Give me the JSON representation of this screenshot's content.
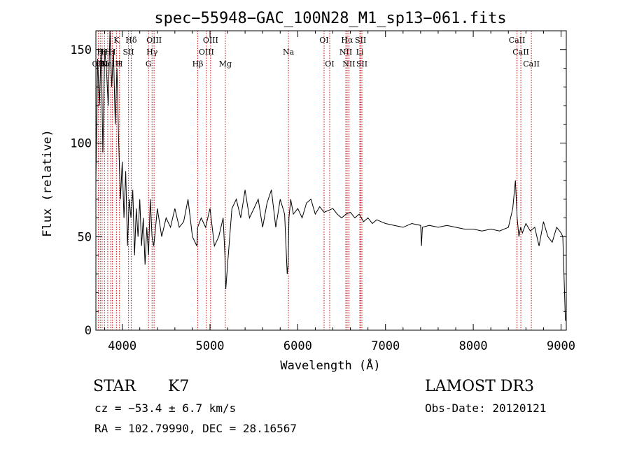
{
  "chart_data": {
    "type": "line",
    "title": "spec−55948−GAC_100N28_M1_sp13−061.fits",
    "xlabel": "Wavelength (Å)",
    "ylabel": "Flux (relative)",
    "xlim": [
      3700,
      9060
    ],
    "ylim": [
      0,
      160
    ],
    "xticks": [
      4000,
      5000,
      6000,
      7000,
      8000,
      9000
    ],
    "yticks": [
      0,
      50,
      100,
      150
    ],
    "grid": false,
    "series": [
      {
        "color": "#000000",
        "x": [
          3700,
          3720,
          3740,
          3760,
          3780,
          3800,
          3820,
          3840,
          3860,
          3880,
          3900,
          3920,
          3940,
          3960,
          3980,
          4000,
          4020,
          4040,
          4060,
          4080,
          4100,
          4120,
          4140,
          4160,
          4180,
          4200,
          4220,
          4240,
          4260,
          4280,
          4300,
          4320,
          4340,
          4360,
          4380,
          4400,
          4450,
          4500,
          4550,
          4600,
          4650,
          4700,
          4750,
          4800,
          4850,
          4860,
          4900,
          4950,
          5000,
          5050,
          5100,
          5150,
          5170,
          5180,
          5200,
          5250,
          5300,
          5350,
          5400,
          5450,
          5500,
          5550,
          5600,
          5650,
          5700,
          5750,
          5800,
          5850,
          5880,
          5890,
          5900,
          5920,
          5950,
          6000,
          6050,
          6100,
          6150,
          6200,
          6250,
          6300,
          6350,
          6400,
          6450,
          6500,
          6550,
          6600,
          6650,
          6700,
          6750,
          6800,
          6850,
          6900,
          6950,
          7000,
          7100,
          7200,
          7300,
          7400,
          7410,
          7420,
          7500,
          7600,
          7700,
          7800,
          7900,
          8000,
          8100,
          8200,
          8300,
          8400,
          8450,
          8480,
          8500,
          8520,
          8540,
          8560,
          8600,
          8650,
          8700,
          8750,
          8800,
          8850,
          8900,
          8950,
          9000,
          9020,
          9040,
          9050
        ],
        "values": [
          80,
          145,
          120,
          150,
          95,
          150,
          140,
          120,
          160,
          130,
          150,
          110,
          140,
          100,
          70,
          90,
          60,
          85,
          45,
          70,
          60,
          75,
          40,
          65,
          50,
          70,
          45,
          60,
          35,
          55,
          40,
          70,
          50,
          45,
          55,
          65,
          50,
          60,
          55,
          65,
          55,
          58,
          70,
          50,
          45,
          55,
          60,
          55,
          65,
          45,
          50,
          60,
          40,
          22,
          35,
          65,
          70,
          60,
          75,
          60,
          65,
          70,
          55,
          68,
          75,
          55,
          70,
          62,
          30,
          35,
          60,
          70,
          62,
          65,
          60,
          68,
          70,
          62,
          66,
          63,
          64,
          65,
          62,
          60,
          62,
          63,
          60,
          62,
          58,
          60,
          57,
          59,
          58,
          57,
          56,
          55,
          57,
          56,
          45,
          55,
          56,
          55,
          56,
          55,
          54,
          54,
          53,
          54,
          53,
          55,
          65,
          80,
          60,
          50,
          55,
          52,
          57,
          53,
          55,
          45,
          58,
          50,
          47,
          55,
          52,
          50,
          20,
          5
        ]
      }
    ],
    "lines": [
      {
        "wl": 3727,
        "label": "OII",
        "row": 2
      },
      {
        "wl": 3750,
        "label": "H",
        "row": 1
      },
      {
        "wl": 3771,
        "label": "OII",
        "row": 2
      },
      {
        "wl": 3798,
        "label": "H",
        "row": 1
      },
      {
        "wl": 3835,
        "label": "H",
        "row": 1
      },
      {
        "wl": 3869,
        "label": "NeIII",
        "row": 2
      },
      {
        "wl": 3889,
        "label": "H",
        "row": 1
      },
      {
        "wl": 3934,
        "label": "K",
        "row": 0
      },
      {
        "wl": 3969,
        "label": "H",
        "row": 2
      },
      {
        "wl": 4072,
        "label": "SII",
        "row": 1
      },
      {
        "wl": 4102,
        "label": "Hδ",
        "row": 0
      },
      {
        "wl": 4300,
        "label": "G",
        "row": 2
      },
      {
        "wl": 4340,
        "label": "Hγ",
        "row": 1
      },
      {
        "wl": 4363,
        "label": "OIII",
        "row": 0
      },
      {
        "wl": 4861,
        "label": "Hβ",
        "row": 2
      },
      {
        "wl": 4959,
        "label": "OIII",
        "row": 1
      },
      {
        "wl": 5007,
        "label": "OIII",
        "row": 0
      },
      {
        "wl": 5175,
        "label": "Mg",
        "row": 2
      },
      {
        "wl": 5894,
        "label": "Na",
        "row": 1
      },
      {
        "wl": 6300,
        "label": "OI",
        "row": 0
      },
      {
        "wl": 6364,
        "label": "OI",
        "row": 2
      },
      {
        "wl": 6548,
        "label": "NII",
        "row": 1
      },
      {
        "wl": 6563,
        "label": "Hα",
        "row": 0
      },
      {
        "wl": 6583,
        "label": "NII",
        "row": 2
      },
      {
        "wl": 6707,
        "label": "Li",
        "row": 1
      },
      {
        "wl": 6716,
        "label": "SII",
        "row": 0
      },
      {
        "wl": 6731,
        "label": "SII",
        "row": 2
      },
      {
        "wl": 8498,
        "label": "CaII",
        "row": 0
      },
      {
        "wl": 8542,
        "label": "CaII",
        "row": 1
      },
      {
        "wl": 8662,
        "label": "CaII",
        "row": 2
      }
    ]
  },
  "info": {
    "object_class": "STAR",
    "subclass": "K7",
    "redshift": "cz = −53.4 ± 6.7 km/s",
    "coordinates": "RA = 102.79990, DEC =  28.16567",
    "survey": "LAMOST DR3",
    "obs_date": "Obs-Date: 20120121"
  }
}
